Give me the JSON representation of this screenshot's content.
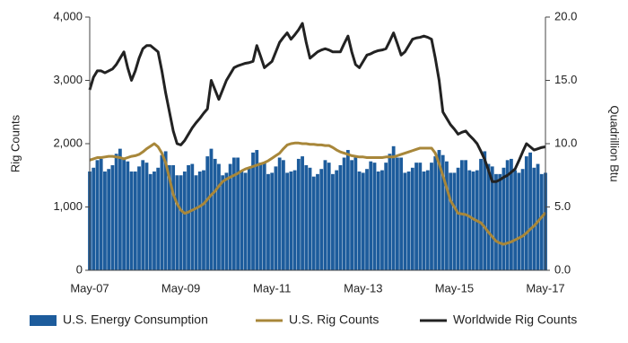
{
  "chart_data": {
    "type": "combo",
    "categories": [
      "May-07",
      null,
      null,
      null,
      null,
      null,
      null,
      null,
      null,
      null,
      null,
      null,
      null,
      null,
      null,
      null,
      null,
      null,
      null,
      null,
      null,
      null,
      null,
      null,
      "May-09",
      null,
      null,
      null,
      null,
      null,
      null,
      null,
      null,
      null,
      null,
      null,
      null,
      null,
      null,
      null,
      null,
      null,
      null,
      null,
      null,
      null,
      null,
      null,
      "May-11",
      null,
      null,
      null,
      null,
      null,
      null,
      null,
      null,
      null,
      null,
      null,
      null,
      null,
      null,
      null,
      null,
      null,
      null,
      null,
      null,
      null,
      null,
      null,
      "May-13",
      null,
      null,
      null,
      null,
      null,
      null,
      null,
      null,
      null,
      null,
      null,
      null,
      null,
      null,
      null,
      null,
      null,
      null,
      null,
      null,
      null,
      null,
      null,
      "May-15",
      null,
      null,
      null,
      null,
      null,
      null,
      null,
      null,
      null,
      null,
      null,
      null,
      null,
      null,
      null,
      null,
      null,
      null,
      null,
      null,
      null,
      null,
      null,
      "May-17"
    ],
    "y_label": "Rig Counts",
    "y2_label": "Quadrillion Btu",
    "ylim": [
      0,
      4000
    ],
    "yticks": [
      0,
      {
        "value": 1000,
        "label": "1,000"
      },
      {
        "value": 2000,
        "label": "2,000"
      },
      {
        "value": 3000,
        "label": "3,000"
      },
      {
        "value": 4000,
        "label": "4,000"
      }
    ],
    "y2lim": [
      0,
      20
    ],
    "y2ticks": [
      {
        "value": 0,
        "label": "0.0"
      },
      {
        "value": 5,
        "label": "5.0"
      },
      {
        "value": 10,
        "label": "10.0"
      },
      {
        "value": 15,
        "label": "15.0"
      },
      {
        "value": 20,
        "label": "20.0"
      }
    ],
    "legend": "bottom",
    "series": [
      {
        "name": "U.S. Energy Consumption",
        "type": "bar",
        "axis": "y2",
        "color": "#1d5c9c",
        "values": [
          7.8,
          8.1,
          8.7,
          8.8,
          7.8,
          8.0,
          8.3,
          9.2,
          9.6,
          8.9,
          8.6,
          7.8,
          7.8,
          8.2,
          8.7,
          8.5,
          7.6,
          7.8,
          8.1,
          9.1,
          9.4,
          8.3,
          8.3,
          7.5,
          7.5,
          7.8,
          8.3,
          8.4,
          7.5,
          7.8,
          7.9,
          9.0,
          9.6,
          8.8,
          8.4,
          7.5,
          7.7,
          8.4,
          8.9,
          8.9,
          7.8,
          7.7,
          8.1,
          9.3,
          9.5,
          8.5,
          8.5,
          7.6,
          7.7,
          8.2,
          8.9,
          8.7,
          7.7,
          7.8,
          7.9,
          8.8,
          9.0,
          8.3,
          8.1,
          7.4,
          7.6,
          8.0,
          8.7,
          8.5,
          7.6,
          7.9,
          8.3,
          8.9,
          9.5,
          8.7,
          8.9,
          7.8,
          7.7,
          8.0,
          8.6,
          8.5,
          7.8,
          7.9,
          8.5,
          9.2,
          9.8,
          8.9,
          8.9,
          7.7,
          7.8,
          8.1,
          8.5,
          8.5,
          7.8,
          7.9,
          8.5,
          9.0,
          9.5,
          9.1,
          8.6,
          7.7,
          7.7,
          8.1,
          8.7,
          8.7,
          7.9,
          7.8,
          7.9,
          8.8,
          9.4,
          8.4,
          8.2,
          7.6,
          7.6,
          8.1,
          8.7,
          8.8,
          7.9,
          7.7,
          8.0,
          9.0,
          9.3,
          8.1,
          8.4,
          7.6,
          7.7
        ]
      },
      {
        "name": "U.S. Rig Counts",
        "type": "line",
        "color": "#a8873a",
        "values": [
          1740,
          1760,
          1780,
          1780,
          1790,
          1800,
          1800,
          1790,
          1780,
          1760,
          1780,
          1800,
          1810,
          1830,
          1870,
          1920,
          1960,
          2000,
          1950,
          1850,
          1700,
          1450,
          1200,
          1050,
          950,
          900,
          920,
          950,
          980,
          1010,
          1050,
          1120,
          1190,
          1250,
          1330,
          1400,
          1440,
          1470,
          1500,
          1530,
          1570,
          1600,
          1620,
          1640,
          1660,
          1680,
          1700,
          1730,
          1770,
          1810,
          1850,
          1920,
          1980,
          2000,
          2010,
          2010,
          2000,
          2000,
          1990,
          1990,
          1980,
          1980,
          1970,
          1970,
          1940,
          1900,
          1870,
          1850,
          1830,
          1810,
          1800,
          1790,
          1790,
          1780,
          1780,
          1780,
          1780,
          1780,
          1790,
          1790,
          1790,
          1810,
          1830,
          1850,
          1870,
          1890,
          1910,
          1930,
          1930,
          1930,
          1930,
          1850,
          1680,
          1500,
          1300,
          1100,
          1000,
          900,
          890,
          880,
          850,
          810,
          780,
          750,
          680,
          600,
          530,
          460,
          430,
          410,
          430,
          450,
          480,
          510,
          540,
          590,
          650,
          700,
          770,
          840,
          910
        ]
      },
      {
        "name": "Worldwide Rig Counts",
        "type": "line",
        "color": "#222222",
        "values": [
          2850,
          3050,
          3150,
          3150,
          3120,
          3150,
          3180,
          3250,
          3350,
          3450,
          3200,
          3000,
          3150,
          3350,
          3500,
          3550,
          3550,
          3500,
          3450,
          3150,
          2800,
          2500,
          2200,
          2000,
          1980,
          2050,
          2150,
          2250,
          2330,
          2400,
          2480,
          2550,
          3000,
          2850,
          2700,
          2850,
          3000,
          3100,
          3200,
          3230,
          3250,
          3270,
          3280,
          3300,
          3550,
          3380,
          3200,
          3250,
          3300,
          3450,
          3600,
          3680,
          3750,
          3650,
          3720,
          3800,
          3900,
          3600,
          3350,
          3400,
          3450,
          3480,
          3500,
          3480,
          3450,
          3450,
          3450,
          3580,
          3700,
          3450,
          3250,
          3200,
          3300,
          3400,
          3420,
          3450,
          3470,
          3480,
          3500,
          3620,
          3750,
          3580,
          3400,
          3450,
          3550,
          3650,
          3670,
          3680,
          3700,
          3680,
          3650,
          3350,
          3000,
          2500,
          2400,
          2300,
          2230,
          2150,
          2180,
          2200,
          2130,
          2070,
          2000,
          1880,
          1750,
          1580,
          1400,
          1400,
          1430,
          1470,
          1500,
          1550,
          1600,
          1730,
          1870,
          2000,
          1950,
          1900,
          1920,
          1940,
          1950
        ]
      }
    ]
  }
}
